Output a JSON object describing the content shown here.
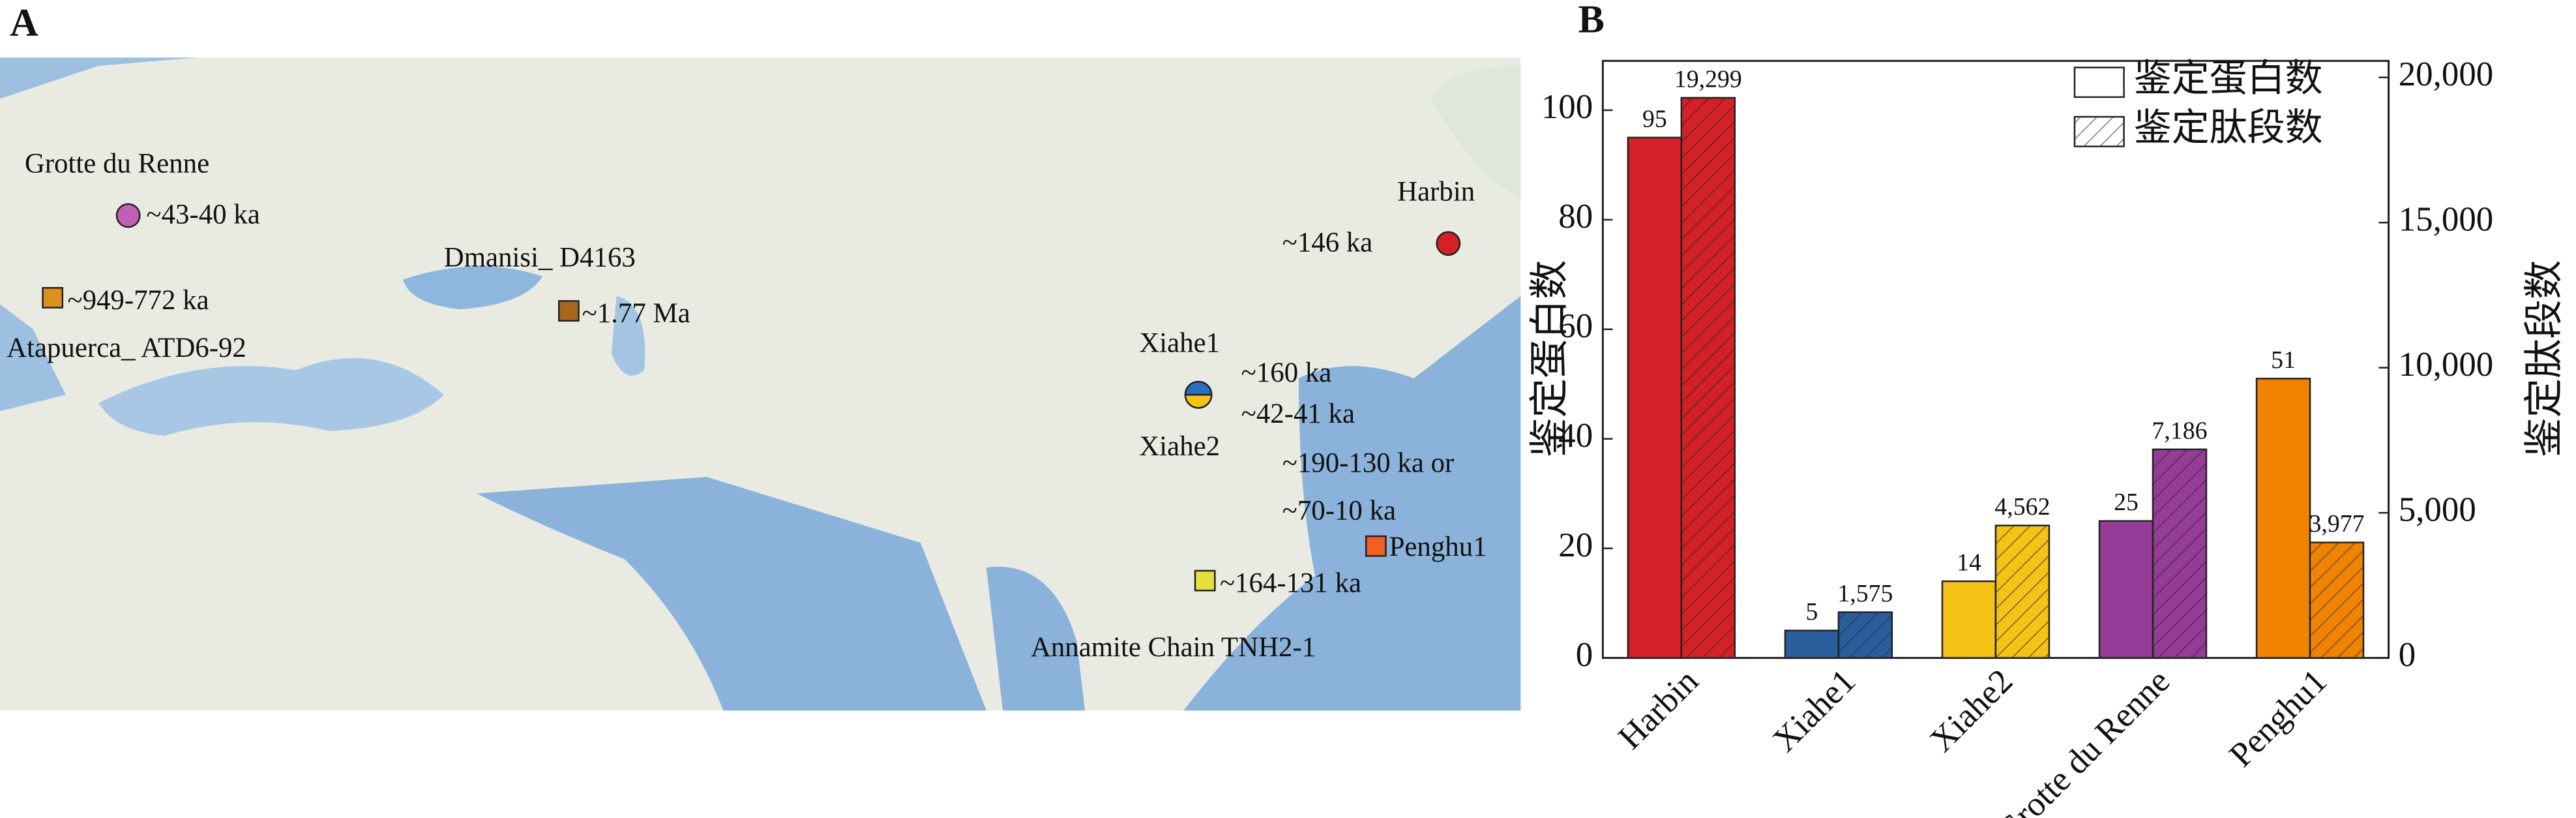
{
  "panel_labels": [
    "A",
    "B"
  ],
  "map": {
    "sites": [
      {
        "name": "Grotte du Renne",
        "ages": [
          "~43-40 ka"
        ]
      },
      {
        "name": "Atapuerca_ ATD6-92",
        "ages": [
          "~949-772 ka"
        ]
      },
      {
        "name": "Dmanisi_ D4163",
        "ages": [
          "~1.77 Ma"
        ]
      },
      {
        "name": "Harbin",
        "ages": [
          "~146 ka"
        ]
      },
      {
        "name": "Xiahe1",
        "ages": [
          "~160 ka"
        ]
      },
      {
        "name": "Xiahe2",
        "ages": [
          "~42-41 ka"
        ]
      },
      {
        "name": "Penghu1",
        "ages": [
          "~190-130 ka or",
          "~70-10 ka"
        ]
      },
      {
        "name": "Annamite Chain TNH2-1",
        "ages": [
          "~164-131 ka"
        ]
      }
    ]
  },
  "chart_data": {
    "type": "bar",
    "categories": [
      "Harbin",
      "Xiahe1",
      "Xiahe2",
      "Grotte du Renne",
      "Penghu1"
    ],
    "colors": [
      "#d42027",
      "#2a5d9c",
      "#f5c216",
      "#953c98",
      "#f08400"
    ],
    "series": [
      {
        "name": "鉴定蛋白数",
        "values": [
          95,
          5,
          14,
          25,
          51
        ]
      },
      {
        "name": "鉴定肽段数",
        "axis": "y2",
        "hatch": true,
        "values": [
          19299,
          1575,
          4562,
          7186,
          3977
        ],
        "value_labels": [
          "19,299",
          "1,575",
          "4,562",
          "7,186",
          "3,977"
        ]
      }
    ],
    "ylabel": "鉴定蛋白数",
    "y2label": "鉴定肽段数",
    "ylim": [
      0,
      109
    ],
    "yticks": [
      0,
      20,
      40,
      60,
      80,
      100
    ],
    "y2lim": [
      0,
      20570
    ],
    "y2ticks": [
      0,
      {
        "value": 5000,
        "label": "5,000"
      },
      {
        "value": 10000,
        "label": "10,000"
      },
      {
        "value": 15000,
        "label": "15,000"
      },
      {
        "value": 20000,
        "label": "20,000"
      }
    ],
    "legend": "top-right"
  }
}
